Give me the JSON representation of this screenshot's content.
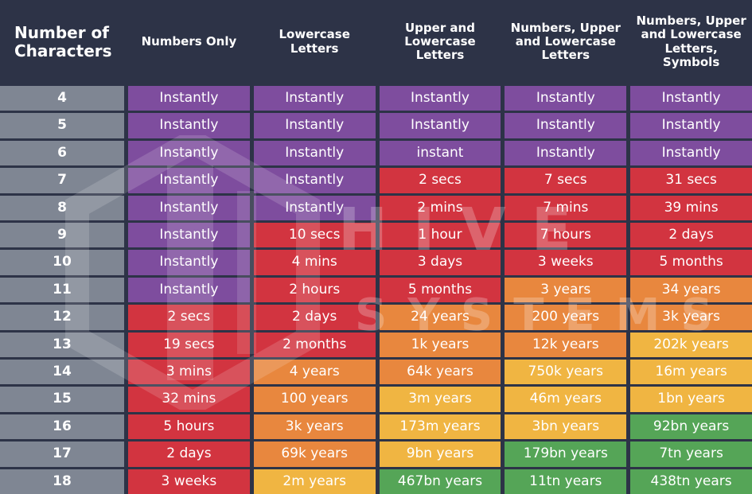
{
  "watermark": {
    "line1": "HIVE",
    "line2": "SYSTEMS"
  },
  "colors": {
    "background_navy": "#2d3347",
    "gray": "#7f8693",
    "purple": "#7e4d9e",
    "red": "#d23440",
    "orange": "#e8873e",
    "yellow": "#f0b542",
    "green": "#55a557",
    "text": "#ffffff"
  },
  "chart_data": {
    "type": "table",
    "row_header": "Number of Characters",
    "columns": [
      "Numbers Only",
      "Lowercase Letters",
      "Upper and Lowercase Letters",
      "Numbers, Upper and Lowercase Letters",
      "Numbers, Upper and Lowercase Letters, Symbols"
    ],
    "rows": [
      {
        "chars": "4",
        "values": [
          "Instantly",
          "Instantly",
          "Instantly",
          "Instantly",
          "Instantly"
        ],
        "colors": [
          "purple",
          "purple",
          "purple",
          "purple",
          "purple"
        ]
      },
      {
        "chars": "5",
        "values": [
          "Instantly",
          "Instantly",
          "Instantly",
          "Instantly",
          "Instantly"
        ],
        "colors": [
          "purple",
          "purple",
          "purple",
          "purple",
          "purple"
        ]
      },
      {
        "chars": "6",
        "values": [
          "Instantly",
          "Instantly",
          "instant",
          "Instantly",
          "Instantly"
        ],
        "colors": [
          "purple",
          "purple",
          "purple",
          "purple",
          "purple"
        ]
      },
      {
        "chars": "7",
        "values": [
          "Instantly",
          "Instantly",
          "2 secs",
          "7 secs",
          "31 secs"
        ],
        "colors": [
          "purple",
          "purple",
          "red",
          "red",
          "red"
        ]
      },
      {
        "chars": "8",
        "values": [
          "Instantly",
          "Instantly",
          "2 mins",
          "7 mins",
          "39 mins"
        ],
        "colors": [
          "purple",
          "purple",
          "red",
          "red",
          "red"
        ]
      },
      {
        "chars": "9",
        "values": [
          "Instantly",
          "10 secs",
          "1 hour",
          "7 hours",
          "2 days"
        ],
        "colors": [
          "purple",
          "red",
          "red",
          "red",
          "red"
        ]
      },
      {
        "chars": "10",
        "values": [
          "Instantly",
          "4 mins",
          "3 days",
          "3 weeks",
          "5 months"
        ],
        "colors": [
          "purple",
          "red",
          "red",
          "red",
          "red"
        ]
      },
      {
        "chars": "11",
        "values": [
          "Instantly",
          "2 hours",
          "5 months",
          "3 years",
          "34 years"
        ],
        "colors": [
          "purple",
          "red",
          "red",
          "orange",
          "orange"
        ]
      },
      {
        "chars": "12",
        "values": [
          "2 secs",
          "2 days",
          "24 years",
          "200 years",
          "3k years"
        ],
        "colors": [
          "red",
          "red",
          "orange",
          "orange",
          "orange"
        ]
      },
      {
        "chars": "13",
        "values": [
          "19 secs",
          "2 months",
          "1k years",
          "12k years",
          "202k years"
        ],
        "colors": [
          "red",
          "red",
          "orange",
          "orange",
          "yellow"
        ]
      },
      {
        "chars": "14",
        "values": [
          "3 mins",
          "4 years",
          "64k years",
          "750k years",
          "16m years"
        ],
        "colors": [
          "red",
          "orange",
          "orange",
          "yellow",
          "yellow"
        ]
      },
      {
        "chars": "15",
        "values": [
          "32 mins",
          "100 years",
          "3m years",
          "46m years",
          "1bn years"
        ],
        "colors": [
          "red",
          "orange",
          "yellow",
          "yellow",
          "yellow"
        ]
      },
      {
        "chars": "16",
        "values": [
          "5 hours",
          "3k years",
          "173m years",
          "3bn years",
          "92bn years"
        ],
        "colors": [
          "red",
          "orange",
          "yellow",
          "yellow",
          "green"
        ]
      },
      {
        "chars": "17",
        "values": [
          "2 days",
          "69k years",
          "9bn years",
          "179bn years",
          "7tn years"
        ],
        "colors": [
          "red",
          "orange",
          "yellow",
          "green",
          "green"
        ]
      },
      {
        "chars": "18",
        "values": [
          "3 weeks",
          "2m years",
          "467bn years",
          "11tn years",
          "438tn years"
        ],
        "colors": [
          "red",
          "yellow",
          "green",
          "green",
          "green"
        ]
      }
    ]
  }
}
